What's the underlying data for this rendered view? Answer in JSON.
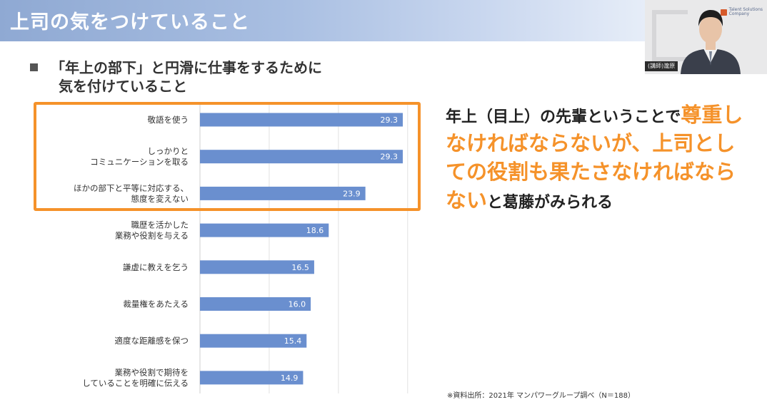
{
  "header": {
    "title": "上司の気をつけていること"
  },
  "video": {
    "caption": "(講師)瀧原",
    "logo_line1": "Talent Solutions",
    "logo_line2": "Company",
    "colors": {
      "background": "#e9e9ea",
      "suit": "#3a3f4b",
      "skin": "#e8c4a8",
      "hair": "#1f1f1f"
    }
  },
  "subtitle": {
    "line1": "「年上の部下」と円滑に仕事をするために",
    "line2": "気を付けていること"
  },
  "chart_data": {
    "type": "bar",
    "orientation": "horizontal",
    "categories": [
      "敬語を使う",
      "しっかりと\nコミュニケーションを取る",
      "ほかの部下と平等に対応する、\n態度を変えない",
      "職歴を活かした\n業務や役割を与える",
      "謙虚に教えを乞う",
      "裁量権をあたえる",
      "適度な距離感を保つ",
      "業務や役割で期待を\nしていることを明確に伝える"
    ],
    "values": [
      29.3,
      29.3,
      23.9,
      18.6,
      16.5,
      16.0,
      15.4,
      14.9
    ],
    "data_labels": [
      "29.3",
      "29.3",
      "23.9",
      "18.6",
      "16.5",
      "16.0",
      "15.4",
      "14.9"
    ],
    "xlim": [
      0,
      40
    ],
    "grid": true,
    "legend": "none",
    "bar_color": "#6a8fcf",
    "label_color": "#ffffff"
  },
  "highlight_color": "#f5922a",
  "note": {
    "part1": "年上（目上）の先輩ということで",
    "orange": "尊重しなければならないが、上司としての役割も果たさなければならない",
    "part2": "と葛藤がみられる"
  },
  "source": "※資料出所：2021年 マンパワーグループ調べ（N＝188）"
}
